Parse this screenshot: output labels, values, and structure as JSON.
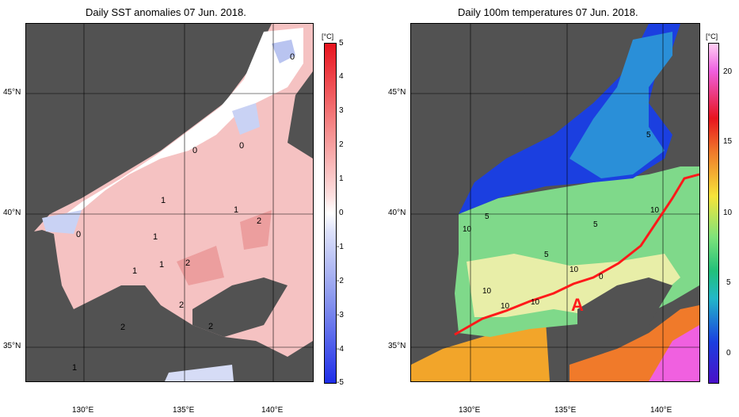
{
  "left": {
    "title": "Daily SST anomalies 07 Jun. 2018.",
    "unit": "[°C]",
    "colorbar_ticks": [
      "5",
      "4",
      "3",
      "2",
      "1",
      "0",
      "-1",
      "-2",
      "-3",
      "-4",
      "-5"
    ],
    "contour_labels": [
      "0",
      "0",
      "0",
      "0",
      "1",
      "1",
      "1",
      "1",
      "1",
      "2",
      "2",
      "2",
      "2",
      "2",
      "1"
    ],
    "colors": {
      "land": "#525252",
      "neutral": "#ffffff",
      "positive": "#f2a8a8",
      "negative": "#b9c4f0"
    }
  },
  "right": {
    "title": "Daily 100m temperatures 07 Jun. 2018.",
    "unit": "[°C]",
    "colorbar_ticks": [
      "20",
      "15",
      "10",
      "5",
      "0"
    ],
    "contour_labels": [
      "5",
      "5",
      "5",
      "5",
      "10",
      "10",
      "10",
      "10",
      "10",
      "0",
      "10"
    ],
    "annotation": "A",
    "colors": {
      "land": "#525252",
      "cold": "#1b3fe0",
      "mid": "#22c07a",
      "warm": "#f2a52a",
      "front": "#ff1a1a"
    }
  },
  "axes": {
    "lat_labels": [
      "45°N",
      "40°N",
      "35°N"
    ],
    "lon_labels": [
      "130°E",
      "135°E",
      "140°E"
    ]
  }
}
